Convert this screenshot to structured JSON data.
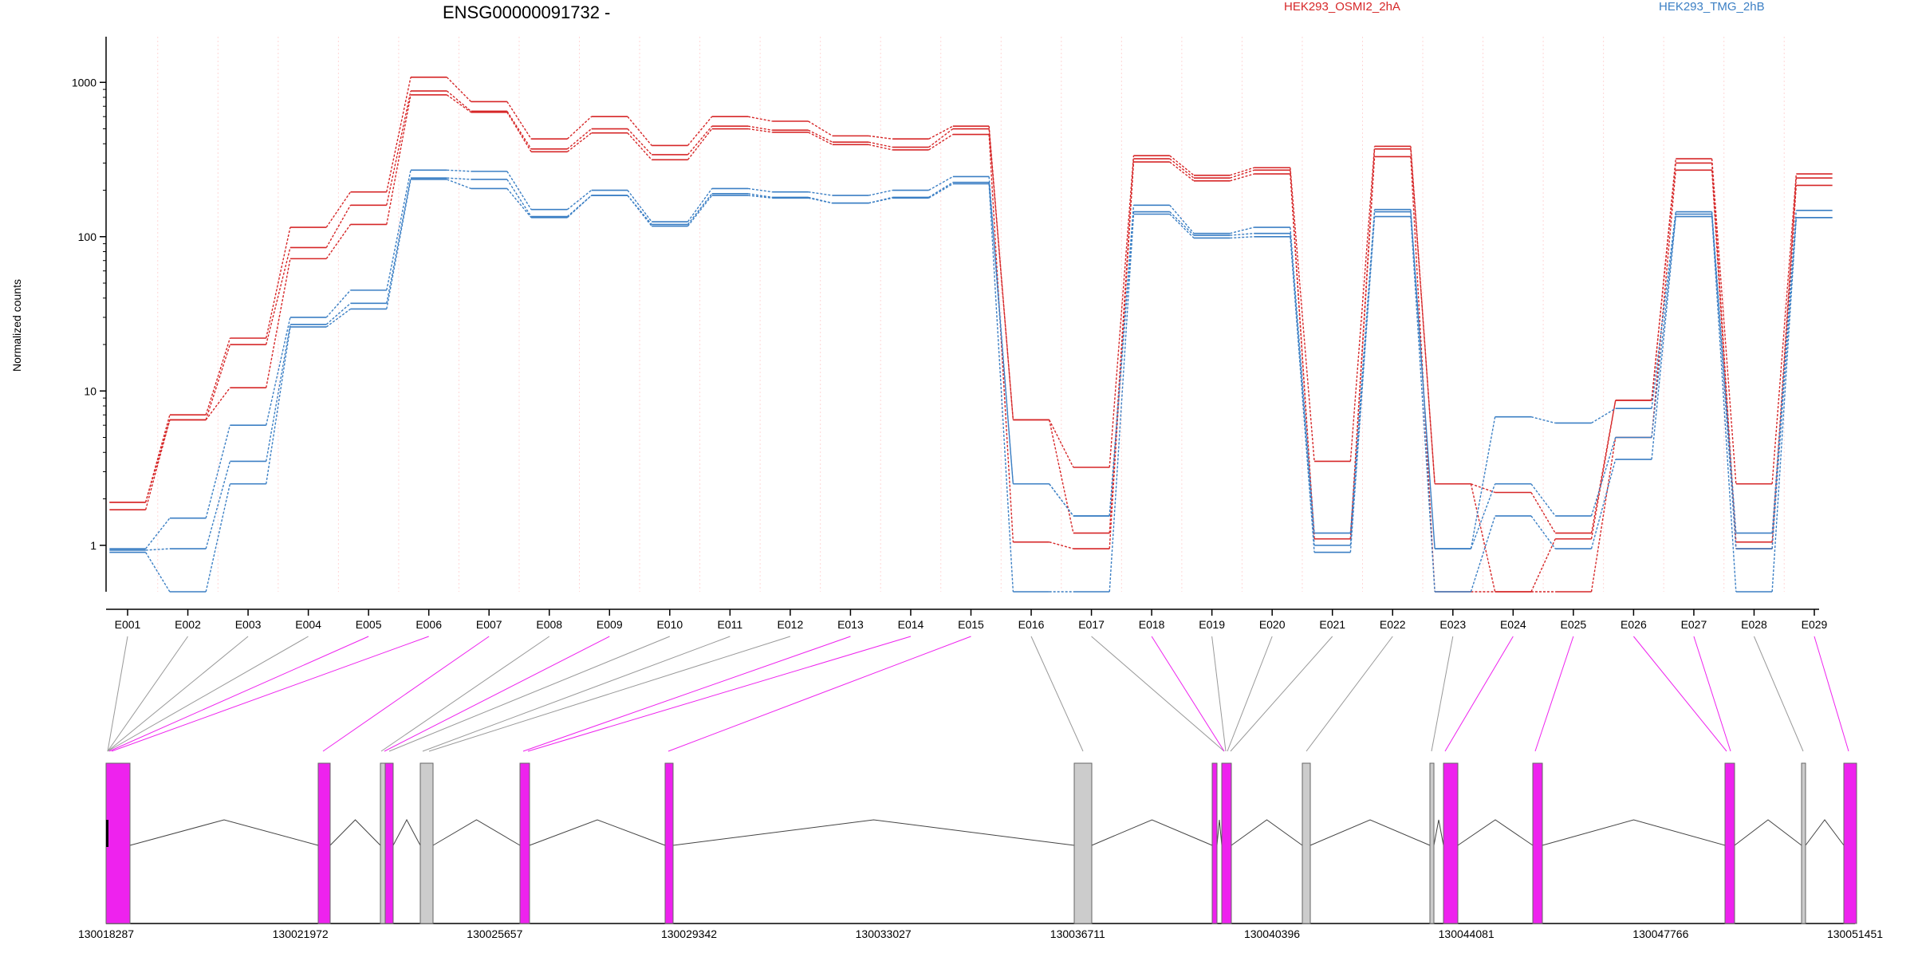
{
  "chart_data": {
    "type": "line",
    "title": "ENSG00000091732 -",
    "ylabel": "Normalized counts",
    "xlabel": "",
    "yscale": "log",
    "ylim": [
      0.5,
      1400
    ],
    "yticks": [
      1,
      10,
      100,
      1000
    ],
    "ytick_labels": [
      "1",
      "10",
      "100",
      "1000"
    ],
    "grid": "vertical dashed",
    "legend_placement": "top-right",
    "categories": [
      "E001",
      "E002",
      "E003",
      "E004",
      "E005",
      "E006",
      "E007",
      "E008",
      "E009",
      "E010",
      "E011",
      "E012",
      "E013",
      "E014",
      "E015",
      "E016",
      "E017",
      "E018",
      "E019",
      "E020",
      "E021",
      "E022",
      "E023",
      "E024",
      "E025",
      "E026",
      "E027",
      "E028",
      "E029"
    ],
    "groups": [
      {
        "name": "HEK293_OSMI2_2hA",
        "color": "#d62728"
      },
      {
        "name": "HEK293_TMG_2hB",
        "color": "#3b7fc4"
      }
    ],
    "series": [
      {
        "group": 0,
        "values": [
          1.9,
          7.0,
          22,
          115,
          195,
          1080,
          750,
          430,
          600,
          390,
          600,
          560,
          450,
          430,
          520,
          6.5,
          3.2,
          335,
          250,
          280,
          3.5,
          385,
          2.5,
          2.2,
          1.2,
          8.7,
          320,
          2.5,
          255
        ]
      },
      {
        "group": 0,
        "values": [
          1.9,
          6.5,
          20,
          85,
          160,
          880,
          650,
          370,
          500,
          340,
          520,
          490,
          410,
          380,
          500,
          6.5,
          1.2,
          320,
          240,
          270,
          1.1,
          370,
          2.5,
          0.5,
          1.1,
          8.7,
          300,
          1.05,
          240
        ]
      },
      {
        "group": 0,
        "values": [
          1.7,
          6.5,
          10.5,
          72,
          120,
          830,
          640,
          355,
          470,
          315,
          500,
          475,
          395,
          365,
          460,
          1.05,
          0.95,
          305,
          230,
          255,
          1.1,
          330,
          0.5,
          0.5,
          0.5,
          5.0,
          270,
          0.95,
          215
        ]
      },
      {
        "group": 1,
        "values": [
          0.95,
          1.5,
          6.0,
          30,
          45,
          270,
          265,
          150,
          200,
          125,
          205,
          195,
          185,
          200,
          245,
          2.5,
          1.55,
          160,
          105,
          115,
          1.2,
          150,
          0.95,
          6.8,
          6.2,
          7.7,
          145,
          1.2,
          148
        ]
      },
      {
        "group": 1,
        "values": [
          0.93,
          0.95,
          3.5,
          27,
          37,
          240,
          235,
          135,
          185,
          120,
          190,
          180,
          165,
          180,
          225,
          2.5,
          1.55,
          145,
          102,
          105,
          1.0,
          145,
          0.95,
          2.5,
          1.55,
          5.0,
          140,
          0.95,
          133
        ]
      },
      {
        "group": 1,
        "values": [
          0.9,
          0.5,
          2.5,
          26,
          34,
          235,
          205,
          133,
          185,
          117,
          185,
          178,
          165,
          178,
          220,
          0.5,
          0.5,
          140,
          98,
          100,
          0.9,
          135,
          0.5,
          1.55,
          0.95,
          3.6,
          135,
          0.5,
          133
        ]
      }
    ],
    "gene_model": {
      "coordinate_labels": [
        "130018287",
        "130021972",
        "130025657",
        "130029342",
        "130033027",
        "130036711",
        "130040396",
        "130044081",
        "130047766",
        "130051451"
      ]
    }
  }
}
